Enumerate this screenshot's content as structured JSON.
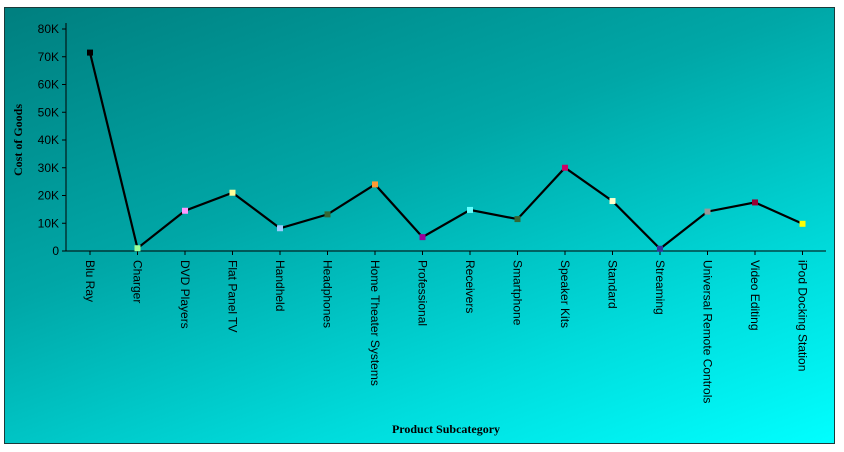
{
  "chart_data": {
    "type": "line",
    "xlabel": "Product Subcategory",
    "ylabel": "Cost of Goods",
    "ylim": [
      0,
      80000
    ],
    "y_ticks": [
      "0",
      "10K",
      "20K",
      "30K",
      "40K",
      "50K",
      "60K",
      "70K",
      "80K"
    ],
    "categories": [
      "Blu Ray",
      "Charger",
      "DVD Players",
      "Flat Panel TV",
      "Handheld",
      "Headphones",
      "Home Theater Systems",
      "Professional",
      "Receivers",
      "Smartphone",
      "Speaker Kits",
      "Standard",
      "Streaming",
      "Universal Remote Controls",
      "Video Editing",
      "iPod Docking Station"
    ],
    "values": [
      71500,
      1000,
      14500,
      21000,
      8200,
      13200,
      24000,
      5000,
      14800,
      11500,
      30000,
      18000,
      800,
      14200,
      17500,
      9800
    ],
    "marker_colors": [
      "#000000",
      "#99ff99",
      "#ff99ff",
      "#ffff99",
      "#99ccff",
      "#336633",
      "#ff9933",
      "#990099",
      "#66ffff",
      "#336633",
      "#cc0066",
      "#ffffcc",
      "#333399",
      "#999999",
      "#990033",
      "#ffff00"
    ],
    "line_color": "#000000",
    "grid": false,
    "legend": "none"
  }
}
